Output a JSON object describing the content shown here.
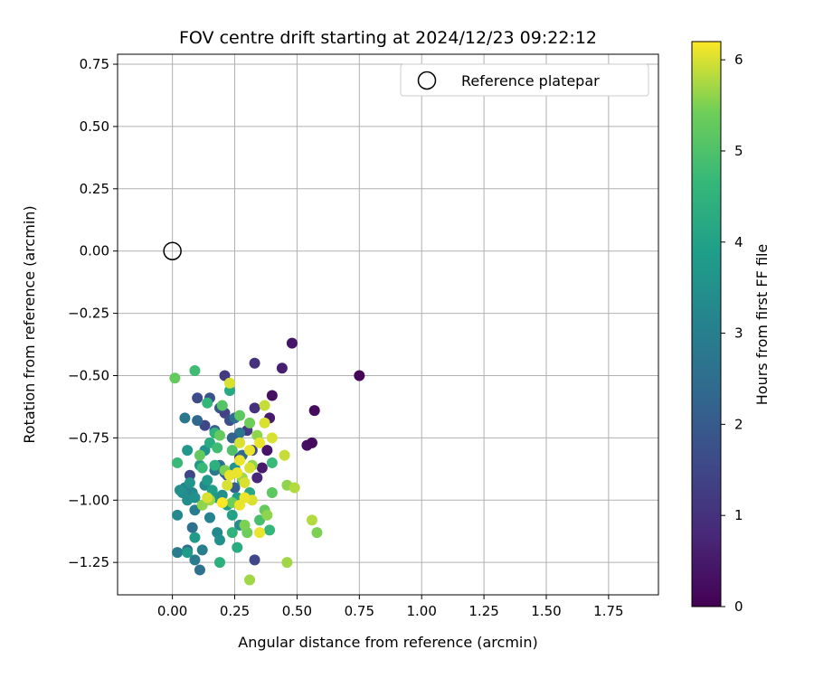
{
  "chart_data": {
    "type": "scatter",
    "title": "FOV centre drift starting at 2024/12/23 09:22:12",
    "xlabel": "Angular distance from reference (arcmin)",
    "ylabel": "Rotation from reference (arcmin)",
    "xlim": [
      -0.22,
      1.95
    ],
    "ylim": [
      -1.38,
      0.79
    ],
    "xticks": [
      0.0,
      0.25,
      0.5,
      0.75,
      1.0,
      1.25,
      1.5,
      1.75
    ],
    "xtick_labels": [
      "0.00",
      "0.25",
      "0.50",
      "0.75",
      "1.00",
      "1.25",
      "1.50",
      "1.75"
    ],
    "yticks": [
      0.75,
      0.5,
      0.25,
      0.0,
      -0.25,
      -0.5,
      -0.75,
      -1.0,
      -1.25
    ],
    "ytick_labels": [
      "0.75",
      "0.50",
      "0.25",
      "0.00",
      "−0.25",
      "−0.50",
      "−0.75",
      "−1.00",
      "−1.25"
    ],
    "grid": true,
    "legend": {
      "placement": "top-right",
      "entries": [
        {
          "label": "Reference platepar",
          "marker": "open-circle"
        }
      ]
    },
    "reference_point": {
      "x": 0.0,
      "y": 0.0
    },
    "colorbar": {
      "label": "Hours from first FF file",
      "colormap": "viridis",
      "range": [
        0,
        6.2
      ],
      "ticks": [
        0,
        1,
        2,
        3,
        4,
        5,
        6
      ],
      "tick_labels": [
        "0",
        "1",
        "2",
        "3",
        "4",
        "5",
        "6"
      ]
    },
    "series": [
      {
        "points": [
          [
            0.75,
            -0.5,
            0.1
          ],
          [
            0.48,
            -0.37,
            0.4
          ],
          [
            0.57,
            -0.64,
            0.2
          ],
          [
            0.54,
            -0.78,
            0.3
          ],
          [
            0.56,
            -0.77,
            0.2
          ],
          [
            0.44,
            -0.47,
            0.6
          ],
          [
            0.33,
            -0.45,
            1.0
          ],
          [
            0.4,
            -0.58,
            0.3
          ],
          [
            0.39,
            -0.67,
            0.5
          ],
          [
            0.36,
            -0.87,
            0.5
          ],
          [
            0.34,
            -0.91,
            0.8
          ],
          [
            0.38,
            -0.8,
            0.4
          ],
          [
            0.3,
            -0.72,
            1.2
          ],
          [
            0.33,
            -0.63,
            1.0
          ],
          [
            0.32,
            -0.8,
            1.5
          ],
          [
            0.27,
            -0.83,
            1.0
          ],
          [
            0.33,
            -1.24,
            1.5
          ],
          [
            0.21,
            -0.5,
            1.2
          ],
          [
            0.1,
            -0.59,
            1.6
          ],
          [
            0.15,
            -0.59,
            1.8
          ],
          [
            0.19,
            -0.63,
            1.9
          ],
          [
            0.21,
            -0.65,
            1.4
          ],
          [
            0.23,
            -0.68,
            1.7
          ],
          [
            0.13,
            -0.7,
            1.5
          ],
          [
            0.07,
            -0.9,
            1.5
          ],
          [
            0.1,
            -0.68,
            2.3
          ],
          [
            0.17,
            -0.72,
            2.1
          ],
          [
            0.25,
            -0.67,
            2.5
          ],
          [
            0.27,
            -0.73,
            2.7
          ],
          [
            0.24,
            -0.75,
            2.2
          ],
          [
            0.28,
            -0.82,
            2.4
          ],
          [
            0.19,
            -0.86,
            2.6
          ],
          [
            0.17,
            -0.88,
            2.8
          ],
          [
            0.21,
            -0.89,
            2.5
          ],
          [
            0.22,
            -0.9,
            2.0
          ],
          [
            0.25,
            -0.95,
            2.1
          ],
          [
            0.05,
            -0.67,
            2.8
          ],
          [
            0.09,
            -1.04,
            2.9
          ],
          [
            0.08,
            -1.11,
            2.6
          ],
          [
            0.11,
            -1.28,
            2.6
          ],
          [
            0.02,
            -1.21,
            2.9
          ],
          [
            0.06,
            -1.2,
            2.4
          ],
          [
            0.12,
            -1.2,
            3.0
          ],
          [
            0.09,
            -1.24,
            2.9
          ],
          [
            0.05,
            -0.95,
            3.1
          ],
          [
            0.08,
            -0.97,
            3.2
          ],
          [
            0.13,
            -0.94,
            3.3
          ],
          [
            0.04,
            -0.97,
            3.4
          ],
          [
            0.06,
            -1.0,
            3.4
          ],
          [
            0.09,
            -0.99,
            3.5
          ],
          [
            0.03,
            -0.96,
            3.5
          ],
          [
            0.07,
            -0.93,
            3.6
          ],
          [
            0.15,
            -1.07,
            3.1
          ],
          [
            0.18,
            -1.13,
            3.3
          ],
          [
            0.19,
            -1.16,
            3.5
          ],
          [
            0.27,
            -1.1,
            3.4
          ],
          [
            0.02,
            -1.06,
            3.3
          ],
          [
            0.14,
            -0.92,
            3.8
          ],
          [
            0.16,
            -0.96,
            3.9
          ],
          [
            0.11,
            -0.86,
            3.7
          ],
          [
            0.13,
            -0.8,
            3.6
          ],
          [
            0.06,
            -0.8,
            3.7
          ],
          [
            0.18,
            -0.99,
            3.8
          ],
          [
            0.22,
            -1.02,
            3.9
          ],
          [
            0.2,
            -0.98,
            3.5
          ],
          [
            0.25,
            -0.87,
            3.6
          ],
          [
            0.26,
            -0.99,
            3.9
          ],
          [
            0.09,
            -1.15,
            3.8
          ],
          [
            0.06,
            -1.21,
            3.8
          ],
          [
            0.24,
            -1.06,
            4.0
          ],
          [
            0.23,
            -0.56,
            4.2
          ],
          [
            0.15,
            -0.77,
            4.3
          ],
          [
            0.17,
            -0.86,
            4.4
          ],
          [
            0.26,
            -1.19,
            4.3
          ],
          [
            0.19,
            -1.25,
            4.4
          ],
          [
            0.28,
            -0.92,
            4.1
          ],
          [
            0.31,
            -0.97,
            4.2
          ],
          [
            0.24,
            -1.13,
            4.5
          ],
          [
            0.3,
            -1.13,
            5.4
          ],
          [
            0.39,
            -1.12,
            4.6
          ],
          [
            0.14,
            -0.61,
            4.6
          ],
          [
            0.17,
            -0.73,
            4.5
          ],
          [
            0.18,
            -0.79,
            4.8
          ],
          [
            0.12,
            -0.87,
            4.7
          ],
          [
            0.02,
            -0.85,
            4.7
          ],
          [
            0.09,
            -0.48,
            4.8
          ],
          [
            0.4,
            -0.85,
            4.7
          ],
          [
            0.35,
            -1.08,
            4.9
          ],
          [
            0.2,
            -0.62,
            5.1
          ],
          [
            0.19,
            -0.74,
            5.3
          ],
          [
            0.27,
            -0.66,
            5.2
          ],
          [
            0.24,
            -0.8,
            5.0
          ],
          [
            0.21,
            -0.88,
            5.5
          ],
          [
            0.34,
            -0.74,
            5.6
          ],
          [
            0.31,
            -0.69,
            5.4
          ],
          [
            0.32,
            -0.86,
            5.6
          ],
          [
            0.28,
            -0.91,
            5.7
          ],
          [
            0.24,
            -1.01,
            5.4
          ],
          [
            0.37,
            -1.04,
            5.3
          ],
          [
            0.4,
            -0.97,
            5.2
          ],
          [
            0.01,
            -0.51,
            5.3
          ],
          [
            0.11,
            -0.82,
            5.3
          ],
          [
            0.15,
            -1.0,
            5.7
          ],
          [
            0.12,
            -1.02,
            5.6
          ],
          [
            0.29,
            -1.1,
            5.5
          ],
          [
            0.38,
            -1.06,
            5.6
          ],
          [
            0.31,
            -1.32,
            5.7
          ],
          [
            0.46,
            -1.25,
            5.7
          ],
          [
            0.46,
            -0.94,
            5.6
          ],
          [
            0.49,
            -0.95,
            5.8
          ],
          [
            0.45,
            -0.82,
            5.9
          ],
          [
            0.56,
            -1.08,
            5.8
          ],
          [
            0.58,
            -1.13,
            5.5
          ],
          [
            0.37,
            -0.62,
            5.9
          ],
          [
            0.37,
            -0.69,
            6.0
          ],
          [
            0.35,
            -0.77,
            6.1
          ],
          [
            0.4,
            -0.75,
            6.0
          ],
          [
            0.27,
            -0.77,
            6.0
          ],
          [
            0.31,
            -0.8,
            6.1
          ],
          [
            0.27,
            -0.84,
            6.1
          ],
          [
            0.31,
            -0.87,
            6.0
          ],
          [
            0.26,
            -0.89,
            6.1
          ],
          [
            0.29,
            -0.93,
            6.0
          ],
          [
            0.32,
            -1.0,
            6.0
          ],
          [
            0.23,
            -0.53,
            6.0
          ],
          [
            0.29,
            -0.99,
            6.1
          ],
          [
            0.27,
            -1.02,
            6.1
          ],
          [
            0.2,
            -1.01,
            6.2
          ],
          [
            0.14,
            -0.99,
            6.0
          ],
          [
            0.23,
            -0.9,
            6.1
          ],
          [
            0.22,
            -0.94,
            6.0
          ],
          [
            0.35,
            -1.13,
            6.1
          ]
        ]
      }
    ]
  }
}
